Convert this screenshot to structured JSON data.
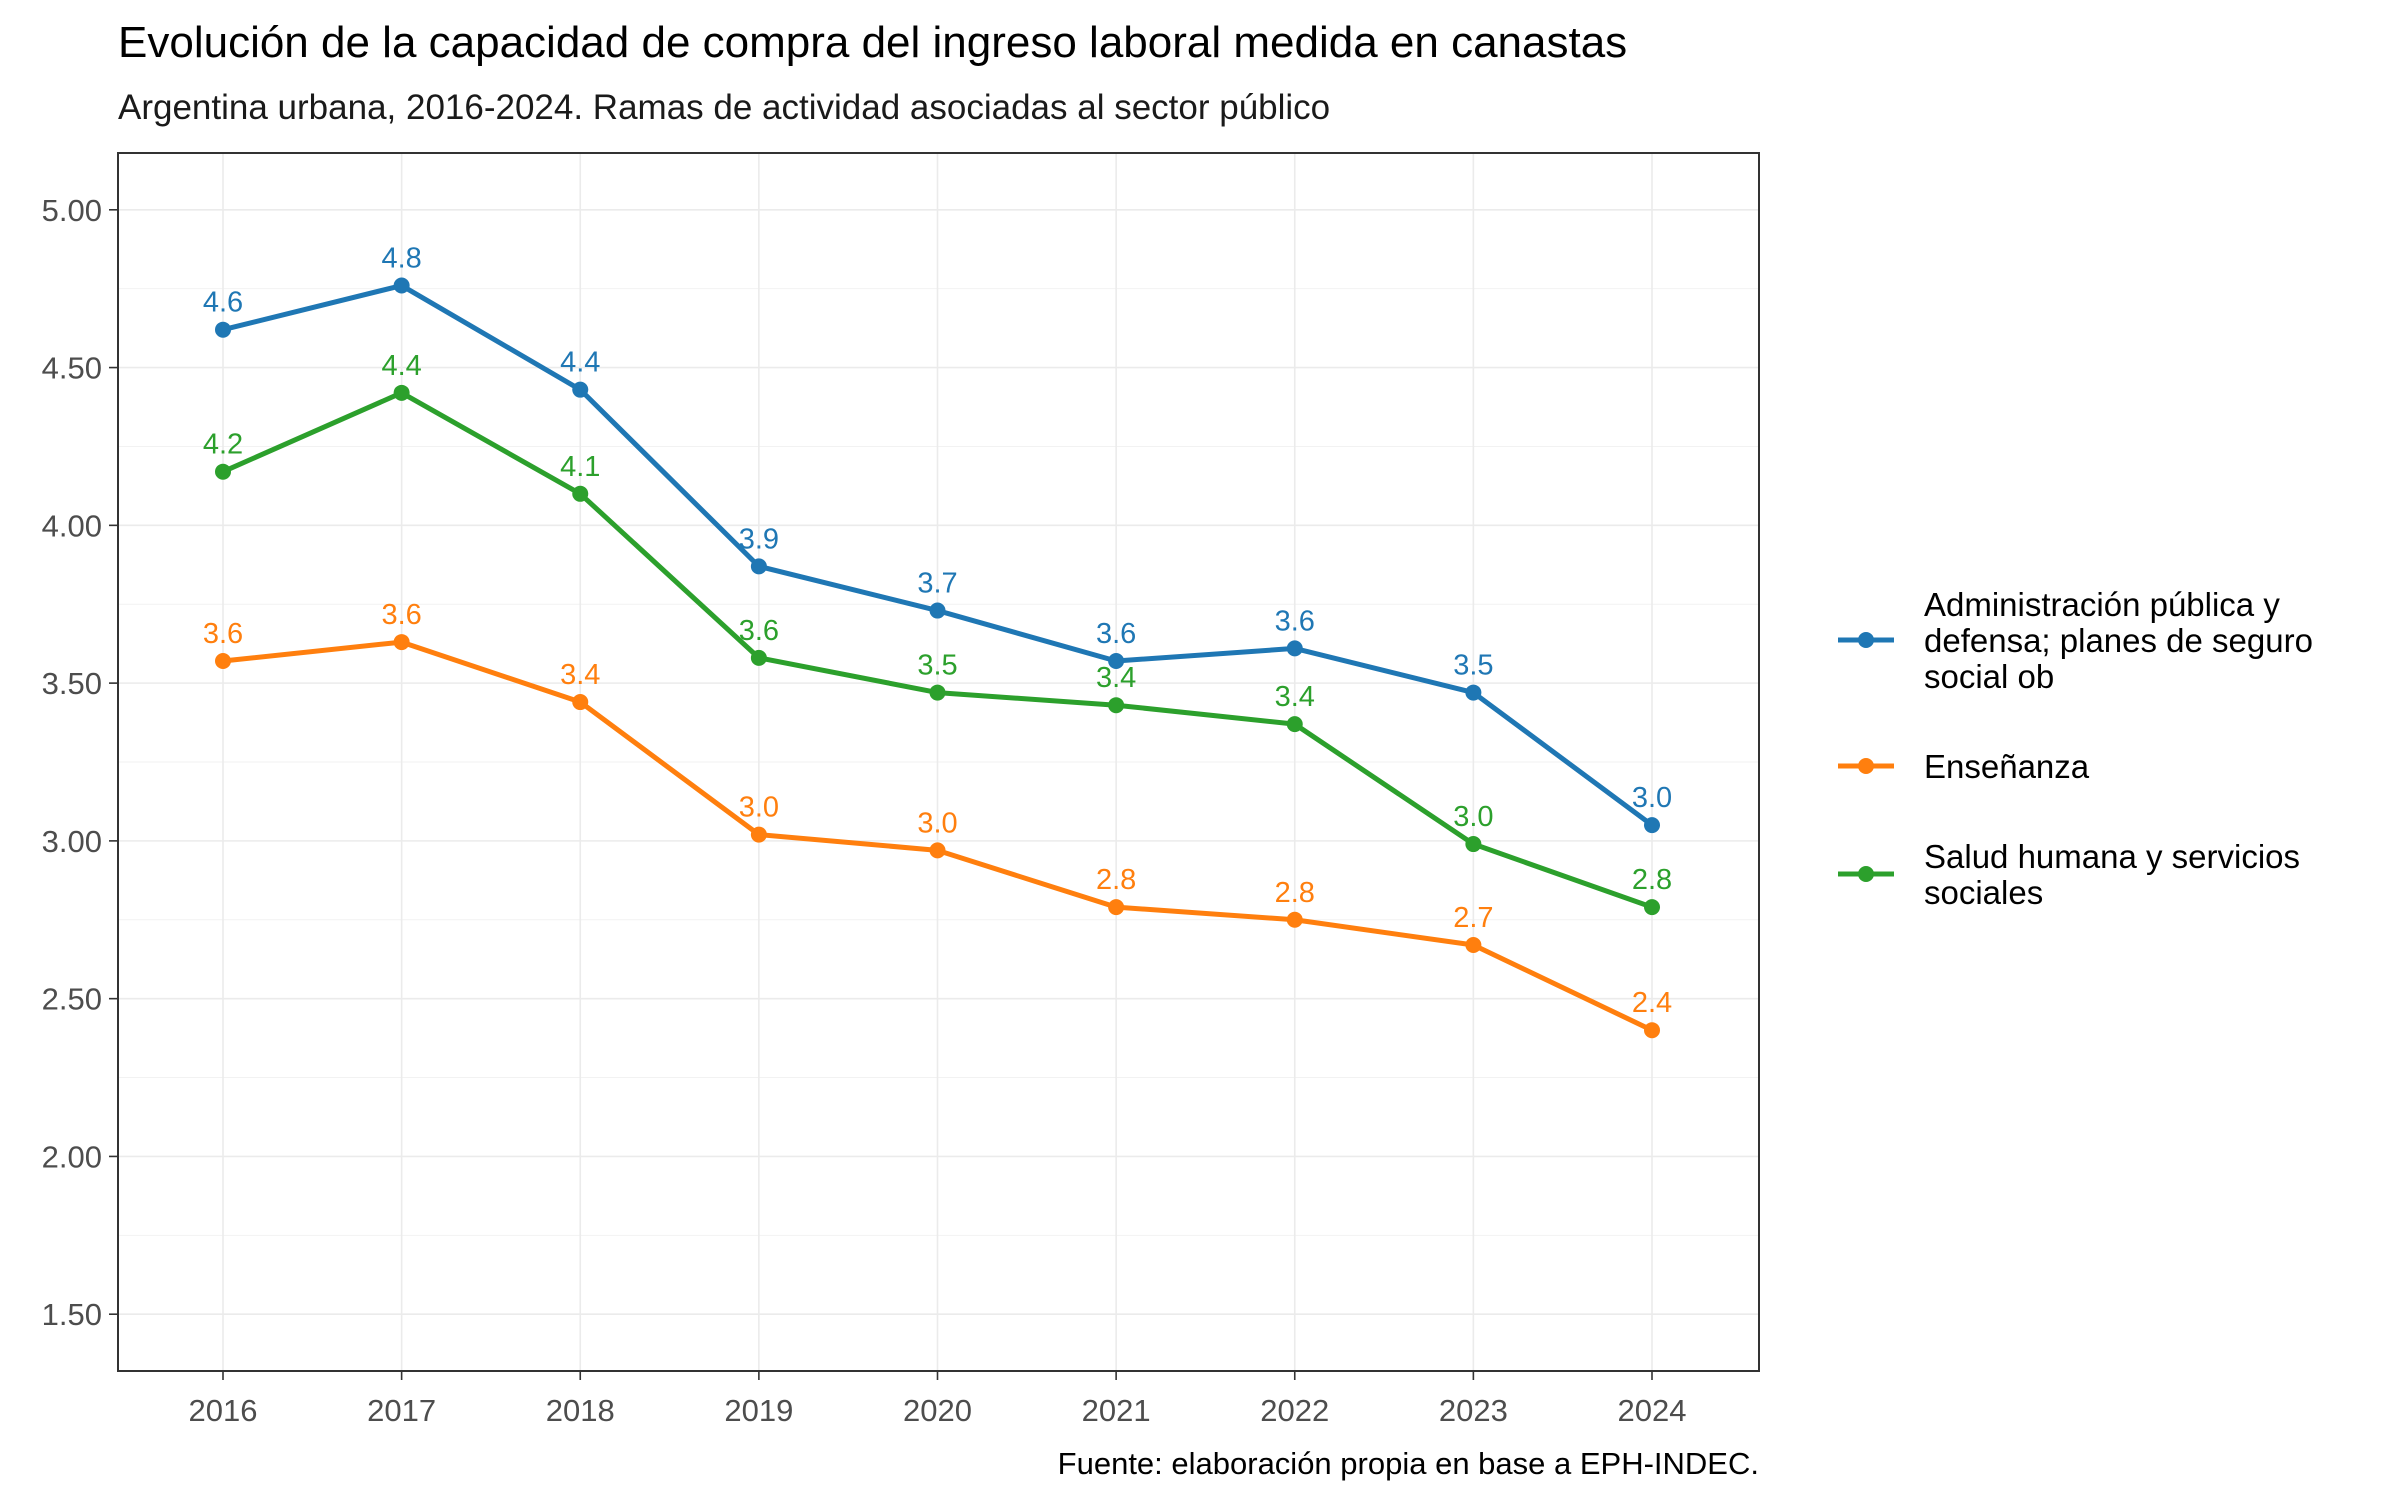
{
  "chart_data": {
    "type": "line",
    "title": "Evolución de la capacidad de compra del ingreso laboral medida en canastas",
    "subtitle": "Argentina urbana, 2016-2024. Ramas de actividad asociadas al sector público",
    "caption": "Fuente: elaboración propia en base a EPH-INDEC.",
    "xlabel": "",
    "ylabel": "",
    "x": [
      "2016",
      "2017",
      "2018",
      "2019",
      "2020",
      "2021",
      "2022",
      "2023",
      "2024"
    ],
    "ylim": [
      1.32,
      5.18
    ],
    "y_ticks": [
      "1.50",
      "2.00",
      "2.50",
      "3.00",
      "3.50",
      "4.00",
      "4.50",
      "5.00"
    ],
    "grid": true,
    "legend_position": "right",
    "series": [
      {
        "name": "Administración pública y defensa; planes de seguro social ob",
        "legend_lines": [
          "Administración pública y",
          "defensa; planes de seguro",
          "social ob"
        ],
        "color": "#1f77b4",
        "values": [
          4.62,
          4.76,
          4.43,
          3.87,
          3.73,
          3.57,
          3.61,
          3.47,
          3.05
        ],
        "labels": [
          "4.6",
          "4.8",
          "4.4",
          "3.9",
          "3.7",
          "3.6",
          "3.6",
          "3.5",
          "3.0"
        ]
      },
      {
        "name": "Enseñanza",
        "legend_lines": [
          "Enseñanza"
        ],
        "color": "#ff7f0e",
        "values": [
          3.57,
          3.63,
          3.44,
          3.02,
          2.97,
          2.79,
          2.75,
          2.67,
          2.4
        ],
        "labels": [
          "3.6",
          "3.6",
          "3.4",
          "3.0",
          "3.0",
          "2.8",
          "2.8",
          "2.7",
          "2.4"
        ]
      },
      {
        "name": "Salud humana y servicios sociales",
        "legend_lines": [
          "Salud humana y servicios",
          "sociales"
        ],
        "color": "#2ca02c",
        "values": [
          4.17,
          4.42,
          4.1,
          3.58,
          3.47,
          3.43,
          3.37,
          2.99,
          2.79
        ],
        "labels": [
          "4.2",
          "4.4",
          "4.1",
          "3.6",
          "3.5",
          "3.4",
          "3.4",
          "3.0",
          "2.8"
        ]
      }
    ]
  }
}
